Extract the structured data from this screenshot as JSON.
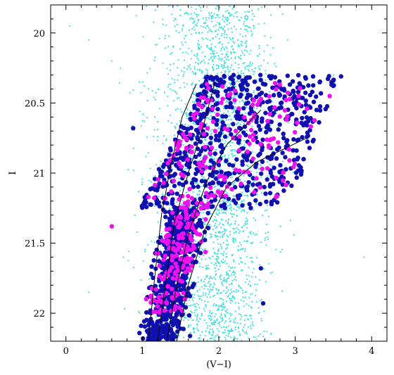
{
  "chart_data": {
    "type": "scatter",
    "title": "",
    "xlabel": "(V−I)",
    "ylabel": "I",
    "xlim": [
      -0.2,
      4.2
    ],
    "ylim": [
      22.2,
      19.8
    ],
    "y_inverted": true,
    "xticks": [
      0,
      1,
      2,
      3,
      4
    ],
    "xtick_labels": [
      "0",
      "1",
      "2",
      "3",
      "4"
    ],
    "yticks": [
      20,
      20.5,
      21,
      21.5,
      22
    ],
    "ytick_labels": [
      "20",
      "20.5",
      "21",
      "21.5",
      "22"
    ],
    "grid": false,
    "legend": "none",
    "colors": {
      "field": "#40E0E0",
      "blue": "#1010B0",
      "magenta": "#F010F0",
      "isochrone": "#000000"
    },
    "series": [
      {
        "color_key": "field",
        "marker": "small-dot",
        "count": 2500,
        "regions": [
          {
            "x_center": 2.1,
            "x_spread": 0.55,
            "y_min": 19.85,
            "y_max": 22.2
          },
          {
            "x_center": 1.8,
            "x_spread": 0.9,
            "y_min": 19.8,
            "y_max": 22.2
          }
        ],
        "sample_points": [
          {
            "x": 0.05,
            "y": 19.95
          },
          {
            "x": 0.3,
            "y": 20.05
          },
          {
            "x": 0.6,
            "y": 20.2
          },
          {
            "x": 1.4,
            "y": 20.1
          },
          {
            "x": 2.1,
            "y": 20.15
          },
          {
            "x": 2.9,
            "y": 20.05
          },
          {
            "x": 3.5,
            "y": 20.3
          },
          {
            "x": 0.9,
            "y": 21.3
          },
          {
            "x": 3.9,
            "y": 21.6
          },
          {
            "x": 0.3,
            "y": 21.85
          },
          {
            "x": 1.6,
            "y": 22.1
          }
        ]
      },
      {
        "color_key": "blue",
        "marker": "large-dot",
        "count": 1300,
        "regions": [
          {
            "shape": "band",
            "y_top": 20.3,
            "y_bottom": 21.25,
            "x_left_top": 1.85,
            "x_right_top": 3.6,
            "x_left_bottom": 0.95,
            "x_right_bottom": 2.9
          },
          {
            "shape": "rgb-tail",
            "y_top": 21.25,
            "y_bottom": 22.2,
            "x_left": 1.0,
            "x_right": 2.3
          }
        ],
        "sample_points": [
          {
            "x": 0.88,
            "y": 20.68
          },
          {
            "x": 1.02,
            "y": 21.22
          },
          {
            "x": 2.58,
            "y": 21.93
          },
          {
            "x": 3.6,
            "y": 20.31
          },
          {
            "x": 2.55,
            "y": 21.68
          },
          {
            "x": 1.2,
            "y": 22.15
          }
        ]
      },
      {
        "color_key": "magenta",
        "marker": "large-dot",
        "count": 340,
        "regions": [
          {
            "shape": "band",
            "y_top": 20.35,
            "y_bottom": 21.2,
            "x_left_top": 1.85,
            "x_right_top": 3.5,
            "x_left_bottom": 1.05,
            "x_right_bottom": 2.8
          },
          {
            "shape": "rgb-tail",
            "y_top": 21.2,
            "y_bottom": 22.0,
            "x_left": 1.0,
            "x_right": 2.4
          }
        ],
        "sample_points": [
          {
            "x": 0.6,
            "y": 21.38
          },
          {
            "x": 3.45,
            "y": 20.45
          },
          {
            "x": 1.05,
            "y": 21.9
          }
        ]
      }
    ],
    "isochrones": [
      {
        "points": [
          [
            1.08,
            22.2
          ],
          [
            1.15,
            21.8
          ],
          [
            1.25,
            21.3
          ],
          [
            1.37,
            20.95
          ],
          [
            1.52,
            20.6
          ],
          [
            1.7,
            20.37
          ]
        ]
      },
      {
        "points": [
          [
            1.2,
            22.2
          ],
          [
            1.3,
            21.8
          ],
          [
            1.42,
            21.35
          ],
          [
            1.6,
            21.0
          ],
          [
            1.78,
            20.7
          ],
          [
            1.95,
            20.35
          ]
        ]
      },
      {
        "points": [
          [
            1.32,
            22.2
          ],
          [
            1.45,
            21.8
          ],
          [
            1.62,
            21.4
          ],
          [
            1.85,
            21.05
          ],
          [
            2.1,
            20.8
          ],
          [
            2.55,
            20.55
          ]
        ]
      },
      {
        "points": [
          [
            1.45,
            22.2
          ],
          [
            1.6,
            21.8
          ],
          [
            1.82,
            21.4
          ],
          [
            2.1,
            21.1
          ],
          [
            2.5,
            20.92
          ],
          [
            3.15,
            20.75
          ]
        ]
      }
    ]
  }
}
